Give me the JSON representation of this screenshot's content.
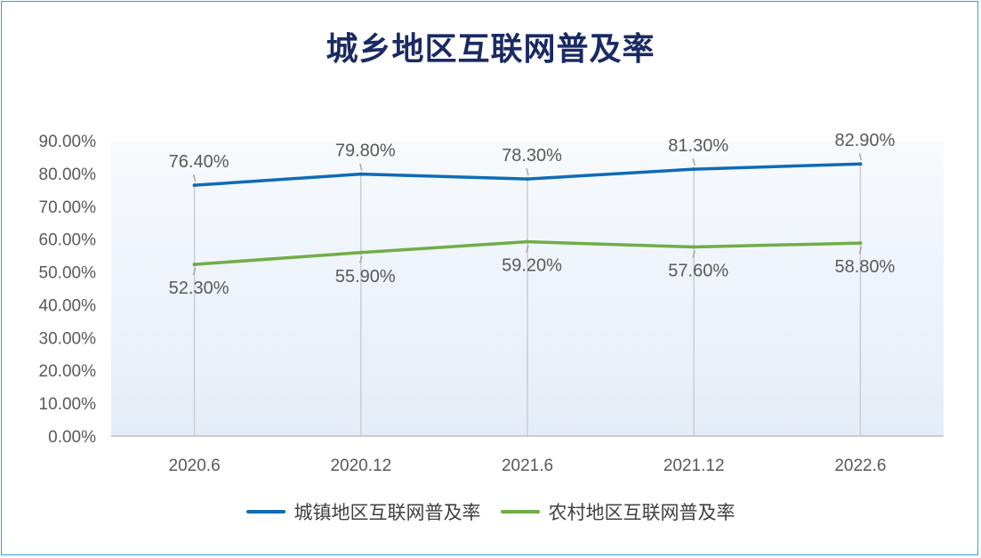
{
  "chart_data": {
    "type": "line",
    "title": "城乡地区互联网普及率",
    "categories": [
      "2020.6",
      "2020.12",
      "2021.6",
      "2021.12",
      "2022.6"
    ],
    "ylim": [
      0,
      90
    ],
    "yticks": [
      "0.00%",
      "10.00%",
      "20.00%",
      "30.00%",
      "40.00%",
      "50.00%",
      "60.00%",
      "70.00%",
      "80.00%",
      "90.00%"
    ],
    "grid": "vertical drop lines at each category",
    "legend_position": "bottom",
    "series": [
      {
        "name": "城镇地区互联网普及率",
        "color": "#0e6bb5",
        "values": [
          76.4,
          79.8,
          78.3,
          81.3,
          82.9
        ],
        "labels": [
          "76.40%",
          "79.80%",
          "78.30%",
          "81.30%",
          "82.90%"
        ]
      },
      {
        "name": "农村地区互联网普及率",
        "color": "#70ad47",
        "values": [
          52.3,
          55.9,
          59.2,
          57.6,
          58.8
        ],
        "labels": [
          "52.30%",
          "55.90%",
          "59.20%",
          "57.60%",
          "58.80%"
        ]
      }
    ]
  }
}
